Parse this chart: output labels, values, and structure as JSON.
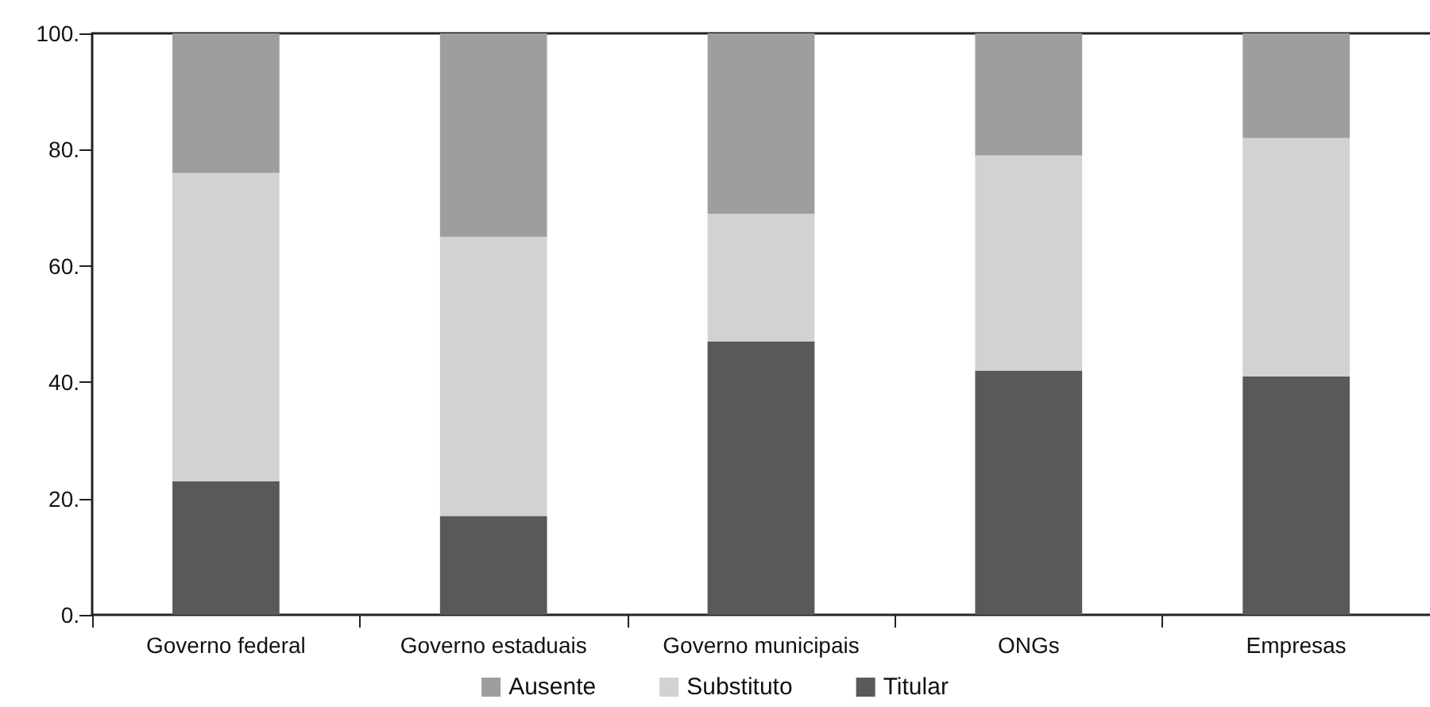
{
  "chart_data": {
    "type": "bar",
    "stacked": true,
    "categories": [
      "Governo federal",
      "Governo estaduais",
      "Governo municipais",
      "ONGs",
      "Empresas"
    ],
    "series": [
      {
        "name": "Titular",
        "color": "#59595b",
        "values": [
          23,
          17,
          47,
          42,
          41
        ]
      },
      {
        "name": "Substituto",
        "color": "#d1d2d4",
        "values": [
          53,
          48,
          22,
          37,
          41
        ]
      },
      {
        "name": "Ausente",
        "color": "#9d9ea0",
        "values": [
          24,
          35,
          31,
          21,
          18
        ]
      }
    ],
    "ylim": [
      0,
      100
    ],
    "yticks": [
      {
        "value": 0,
        "label": "0."
      },
      {
        "value": 20,
        "label": "20."
      },
      {
        "value": 40,
        "label": "40."
      },
      {
        "value": 60,
        "label": "60."
      },
      {
        "value": 80,
        "label": "80."
      },
      {
        "value": 100,
        "label": "100."
      }
    ],
    "grid": false,
    "legend": "bottom"
  }
}
